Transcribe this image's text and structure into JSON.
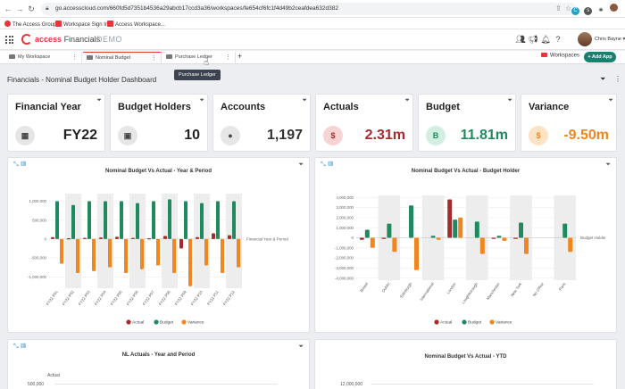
{
  "browser": {
    "url": "go.accesscloud.com/660fd5d7351b4536a29abcb17ccd3a36/workspaces/fe654cf6fc1f4d49b2ceafdea632d382",
    "bookmarks": [
      "The Access Group",
      "Workspace Sign In",
      "Access Workspace..."
    ]
  },
  "app": {
    "logo_word": "access",
    "product": "Financials",
    "env": "DEMO",
    "user": "Chris Bayne"
  },
  "tabs": [
    {
      "label": "My Workspace"
    },
    {
      "label": "Nominal Budget"
    },
    {
      "label": "Purchase Ledger"
    }
  ],
  "tooltip": "Purchase Ledger",
  "header_buttons": {
    "workspaces": "Workspaces",
    "add_app": "+ Add App"
  },
  "dashboard_title": "Financials - Nominal Budget Holder Dashboard",
  "kpis": [
    {
      "title": "Financial Year",
      "value": "FY22",
      "icon": "calendar-icon",
      "value_color": "#222222",
      "circle_bg": "#e6e6e6",
      "circle_fg": "#444444",
      "glyph": "▦"
    },
    {
      "title": "Budget Holders",
      "value": "10",
      "icon": "id-card-icon",
      "value_color": "#222222",
      "circle_bg": "#e6e6e6",
      "circle_fg": "#444444",
      "glyph": "▣"
    },
    {
      "title": "Accounts",
      "value": "1,197",
      "icon": "medal-icon",
      "value_color": "#333333",
      "circle_bg": "#e6e6e6",
      "circle_fg": "#444444",
      "glyph": "●"
    },
    {
      "title": "Actuals",
      "value": "2.31m",
      "icon": "money-bag-icon",
      "value_color": "#a82a2a",
      "circle_bg": "#f7d4d4",
      "circle_fg": "#a82a2a",
      "glyph": "$"
    },
    {
      "title": "Budget",
      "value": "11.81m",
      "icon": "budget-b-icon",
      "value_color": "#1f8a5e",
      "circle_bg": "#d2efe2",
      "circle_fg": "#1f8a5e",
      "glyph": "B"
    },
    {
      "title": "Variance",
      "value": "-9.50m",
      "icon": "money-bag-icon",
      "value_color": "#f0861e",
      "circle_bg": "#fde3c6",
      "circle_fg": "#f0861e",
      "glyph": "$"
    }
  ],
  "colors": {
    "actual": "#a82a2a",
    "budget": "#1f8a5e",
    "variance": "#f0861e"
  },
  "chart_data": [
    {
      "type": "bar",
      "title": "Nominal Budget Vs Actual - Year & Period",
      "legend_title": "Financial Year & Period",
      "categories": [
        "FY22 P01",
        "FY22 P02",
        "FY22 P03",
        "FY22 P04",
        "FY22 P05",
        "FY22 P06",
        "FY22 P07",
        "FY22 P08",
        "FY22 P09",
        "FY22 P10",
        "FY22 P11",
        "FY22 P12"
      ],
      "series": [
        {
          "name": "Actual",
          "values": [
            50000,
            20000,
            30000,
            40000,
            60000,
            30000,
            20000,
            80000,
            -250000,
            50000,
            150000,
            100000
          ]
        },
        {
          "name": "Budget",
          "values": [
            1000000,
            900000,
            1000000,
            1000000,
            1000000,
            950000,
            1000000,
            1050000,
            1000000,
            950000,
            1000000,
            1000000
          ]
        },
        {
          "name": "Variance",
          "values": [
            -650000,
            -900000,
            -850000,
            -750000,
            -900000,
            -800000,
            -700000,
            -900000,
            -1250000,
            -700000,
            -900000,
            -750000
          ]
        }
      ],
      "yticks": [
        "1,000,000",
        "500,000",
        "0",
        "-500,000",
        "-1,000,000"
      ],
      "ylim": [
        -1300000,
        1200000
      ],
      "legend": [
        "Actual",
        "Budget",
        "Variance"
      ]
    },
    {
      "type": "bar",
      "title": "Nominal Budget Vs Actual - Budget Holder",
      "legend_title": "Budget Holder",
      "categories": [
        "Bristol",
        "Dublin",
        "Edinburgh",
        "International",
        "London",
        "Loughborough",
        "Manchester",
        "New York",
        "No Office",
        "Paris"
      ],
      "series": [
        {
          "name": "Actual",
          "values": [
            -200000,
            -50000,
            0,
            0,
            3800000,
            0,
            -50000,
            -100000,
            0,
            0
          ]
        },
        {
          "name": "Budget",
          "values": [
            800000,
            1400000,
            3200000,
            200000,
            1800000,
            1600000,
            200000,
            1500000,
            0,
            1400000
          ]
        },
        {
          "name": "Variance",
          "values": [
            -1000000,
            -1400000,
            -3200000,
            -200000,
            2000000,
            -1600000,
            -300000,
            -1600000,
            0,
            -1400000
          ]
        }
      ],
      "yticks": [
        "4,000,000",
        "3,000,000",
        "2,000,000",
        "1,000,000",
        "0",
        "-1,000,000",
        "-2,000,000",
        "-3,000,000",
        "-4,000,000"
      ],
      "ylim": [
        -4200000,
        4200000
      ],
      "legend": [
        "Actual",
        "Budget",
        "Variance"
      ]
    },
    {
      "type": "bar",
      "title": "NL Actuals - Year and Period",
      "ylabel": "Actual",
      "yticks": [
        "500,000"
      ]
    },
    {
      "type": "bar",
      "title": "Nominal Budget Vs Actual - YTD",
      "yticks": [
        "12,000,000"
      ]
    }
  ]
}
